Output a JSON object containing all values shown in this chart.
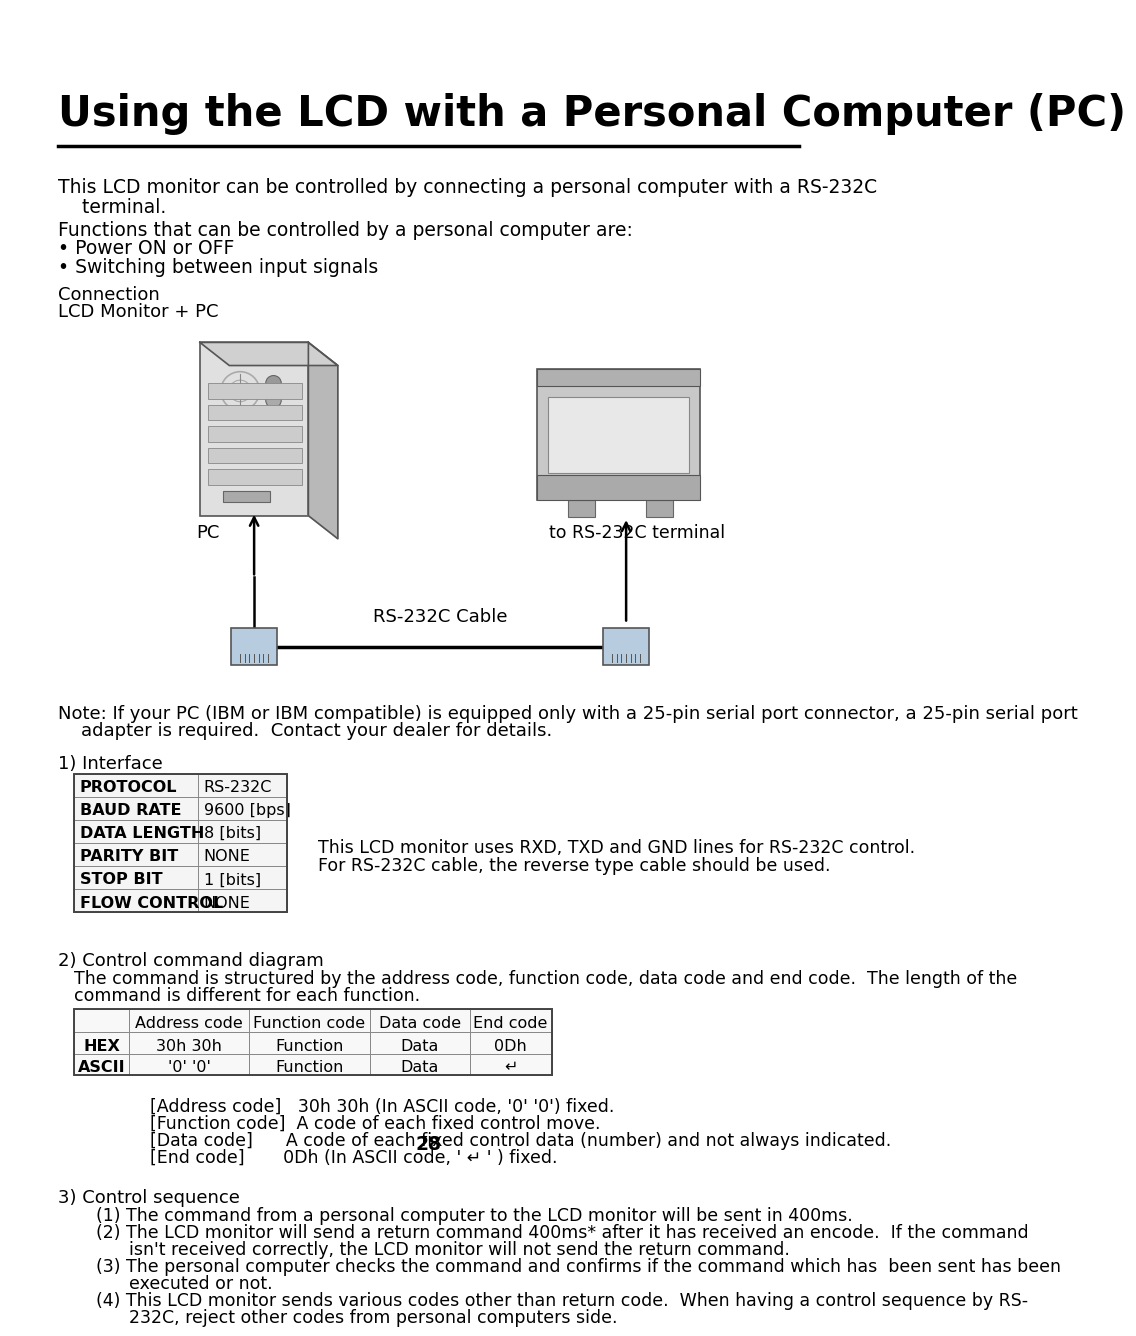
{
  "title": "Using the LCD with a Personal Computer (PC)",
  "bg_color": "#ffffff",
  "text_color": "#000000",
  "page_number": "28",
  "intro_text_line1": "This LCD monitor can be controlled by connecting a personal computer with a RS-232C",
  "intro_text_line2": "    terminal.",
  "intro_text_line3": "Functions that can be controlled by a personal computer are:",
  "intro_text_line4": "• Power ON or OFF",
  "intro_text_line5": "• Switching between input signals",
  "connection_label": "Connection",
  "connection_sub": "LCD Monitor + PC",
  "pc_label": "PC",
  "monitor_label": "to RS-232C terminal",
  "cable_label": "RS-232C Cable",
  "note_text_line1": "Note: If your PC (IBM or IBM compatible) is equipped only with a 25-pin serial port connector, a 25-pin serial port",
  "note_text_line2": "    adapter is required.  Contact your dealer for details.",
  "interface_label": "1) Interface",
  "interface_table_rows": [
    [
      "PROTOCOL",
      "RS-232C"
    ],
    [
      "BAUD RATE",
      "9600 [bps]"
    ],
    [
      "DATA LENGTH",
      "8 [bits]"
    ],
    [
      "PARITY BIT",
      "NONE"
    ],
    [
      "STOP BIT",
      "1 [bits]"
    ],
    [
      "FLOW CONTROL",
      "NONE"
    ]
  ],
  "interface_note1": "This LCD monitor uses RXD, TXD and GND lines for RS-232C control.",
  "interface_note2": "For RS-232C cable, the reverse type cable should be used.",
  "control_cmd_label": "2) Control command diagram",
  "control_cmd_line1": "The command is structured by the address code, function code, data code and end code.  The length of the",
  "control_cmd_line2": "command is different for each function.",
  "cmd_table_headers": [
    "",
    "Address code",
    "Function code",
    "Data code",
    "End code"
  ],
  "cmd_table_rows": [
    [
      "HEX",
      "30h 30h",
      "Function",
      "Data",
      "0Dh"
    ],
    [
      "ASCII",
      "'0' '0'",
      "Function",
      "Data",
      "↵"
    ]
  ],
  "code_note_lines": [
    "[Address code]   30h 30h (In ASCII code, '0' '0') fixed.",
    "[Function code]  A code of each fixed control move.",
    "[Data code]      A code of each fixed control data (number) and not always indicated.",
    "[End code]       0Dh (In ASCII code, ' ↵ ' ) fixed."
  ],
  "control_seq_label": "3) Control sequence",
  "control_seq_lines": [
    "    (1) The command from a personal computer to the LCD monitor will be sent in 400ms.",
    "    (2) The LCD monitor will send a return command 400ms* after it has received an encode.  If the command",
    "          isn't received correctly, the LCD monitor will not send the return command.",
    "    (3) The personal computer checks the command and confirms if the command which has  been sent has been",
    "          executed or not.",
    "    (4) This LCD monitor sends various codes other than return code.  When having a control sequence by RS-",
    "          232C, reject other codes from personal computers side."
  ]
}
